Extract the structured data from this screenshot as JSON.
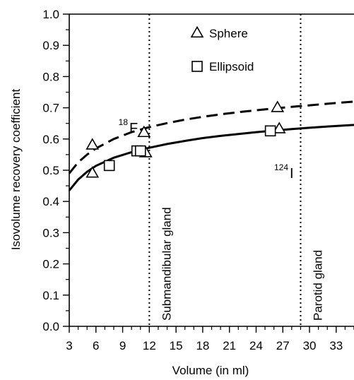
{
  "chart_data": {
    "type": "scatter",
    "xlabel": "Volume (in ml)",
    "ylabel": "Isovolume recovery coefficient",
    "xlim": [
      3,
      35
    ],
    "ylim": [
      0.0,
      1.0
    ],
    "x_ticks": [
      3,
      6,
      9,
      12,
      15,
      18,
      21,
      24,
      27,
      30,
      33
    ],
    "x_tick_labels": [
      "3",
      "6",
      "9",
      "12",
      "15",
      "18",
      "21",
      "24",
      "27",
      "30",
      "33"
    ],
    "y_ticks": [
      0.0,
      0.1,
      0.2,
      0.3,
      0.4,
      0.5,
      0.6,
      0.7,
      0.8,
      0.9,
      1.0
    ],
    "y_tick_labels": [
      "0.0",
      "0.1",
      "0.2",
      "0.3",
      "0.4",
      "0.5",
      "0.6",
      "0.7",
      "0.8",
      "0.9",
      "1.0"
    ],
    "grid": false,
    "legend_position": "top-center",
    "legend": [
      {
        "marker": "triangle",
        "label": "Sphere"
      },
      {
        "marker": "square",
        "label": "Ellipsoid"
      }
    ],
    "series": [
      {
        "marker": "triangle",
        "points": [
          {
            "x": 5.6,
            "y": 0.58
          },
          {
            "x": 5.6,
            "y": 0.49
          },
          {
            "x": 11.4,
            "y": 0.62
          },
          {
            "x": 11.6,
            "y": 0.555
          },
          {
            "x": 26.4,
            "y": 0.7
          },
          {
            "x": 26.6,
            "y": 0.632
          }
        ]
      },
      {
        "marker": "square",
        "points": [
          {
            "x": 7.5,
            "y": 0.515
          },
          {
            "x": 10.6,
            "y": 0.562
          },
          {
            "x": 11.0,
            "y": 0.562
          },
          {
            "x": 25.6,
            "y": 0.626
          }
        ]
      }
    ],
    "curves": [
      {
        "style": "dashed",
        "label_main": "F",
        "label_sup": "18",
        "x": [
          3,
          4,
          5,
          6,
          8,
          10,
          12,
          14,
          16,
          18,
          20,
          22,
          24,
          26,
          28,
          30,
          32,
          35
        ],
        "y": [
          0.49,
          0.525,
          0.55,
          0.57,
          0.6,
          0.622,
          0.638,
          0.651,
          0.662,
          0.671,
          0.679,
          0.686,
          0.692,
          0.698,
          0.703,
          0.708,
          0.713,
          0.72
        ]
      },
      {
        "style": "solid",
        "label_main": "I",
        "label_sup": "124",
        "x": [
          3,
          4,
          5,
          6,
          8,
          10,
          12,
          14,
          16,
          18,
          20,
          22,
          24,
          26,
          28,
          30,
          32,
          35
        ],
        "y": [
          0.435,
          0.47,
          0.495,
          0.514,
          0.54,
          0.558,
          0.572,
          0.584,
          0.594,
          0.603,
          0.61,
          0.616,
          0.622,
          0.627,
          0.632,
          0.636,
          0.64,
          0.645
        ]
      }
    ],
    "vertical_lines": [
      {
        "x": 12,
        "style": "dotted",
        "label": "Submandibular gland"
      },
      {
        "x": 29,
        "style": "dotted",
        "label": "Parotid gland"
      }
    ]
  }
}
